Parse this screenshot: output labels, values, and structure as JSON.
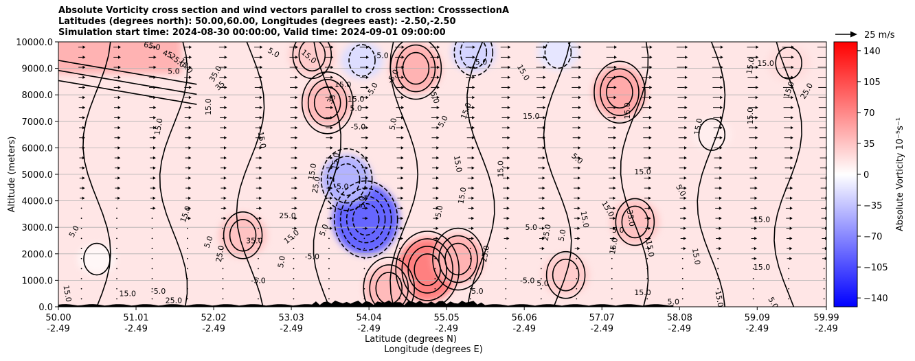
{
  "chart_data": {
    "type": "heatmap",
    "title_lines": [
      "Absolute Vorticity cross section and wind vectors parallel to cross section: CrosssectionA",
      "Latitudes (degrees north): 50.00,60.00, Longitudes (degrees east): -2.50,-2.50",
      "Simulation start time: 2024-08-30 00:00:00, Valid time: 2024-09-01 09:00:00"
    ],
    "xlabel_line1": "Latitude (degrees N)",
    "xlabel_line2": "Longitude (degrees E)",
    "ylabel": "Altitude (meters)",
    "xlim": [
      50.0,
      59.99
    ],
    "ylim": [
      0,
      10000
    ],
    "x_ticks": [
      {
        "lat": "50.00",
        "lon": "-2.49",
        "value": 50.0
      },
      {
        "lat": "51.01",
        "lon": "-2.49",
        "value": 51.01
      },
      {
        "lat": "52.02",
        "lon": "-2.49",
        "value": 52.02
      },
      {
        "lat": "53.03",
        "lon": "-2.49",
        "value": 53.03
      },
      {
        "lat": "54.04",
        "lon": "-2.49",
        "value": 54.04
      },
      {
        "lat": "55.05",
        "lon": "-2.49",
        "value": 55.05
      },
      {
        "lat": "56.06",
        "lon": "-2.49",
        "value": 56.06
      },
      {
        "lat": "57.07",
        "lon": "-2.49",
        "value": 57.07
      },
      {
        "lat": "58.08",
        "lon": "-2.49",
        "value": 58.08
      },
      {
        "lat": "59.09",
        "lon": "-2.49",
        "value": 59.09
      },
      {
        "lat": "59.99",
        "lon": "-2.49",
        "value": 59.99
      }
    ],
    "y_ticks": [
      {
        "label": "0.0",
        "value": 0
      },
      {
        "label": "1000.0",
        "value": 1000
      },
      {
        "label": "2000.0",
        "value": 2000
      },
      {
        "label": "3000.0",
        "value": 3000
      },
      {
        "label": "4000.0",
        "value": 4000
      },
      {
        "label": "5000.0",
        "value": 5000
      },
      {
        "label": "6000.0",
        "value": 6000
      },
      {
        "label": "7000.0",
        "value": 7000
      },
      {
        "label": "8000.0",
        "value": 8000
      },
      {
        "label": "9000.0",
        "value": 9000
      },
      {
        "label": "10000.0",
        "value": 10000
      }
    ],
    "grid": "horizontal",
    "colorbar": {
      "label": "Absolute Vorticity 10⁻⁵s⁻¹",
      "range": [
        -150,
        150
      ],
      "ticks": [
        {
          "label": "140",
          "value": 140
        },
        {
          "label": "105",
          "value": 105
        },
        {
          "label": "70",
          "value": 70
        },
        {
          "label": "35",
          "value": 35
        },
        {
          "label": "0",
          "value": 0
        },
        {
          "label": "−35",
          "value": -35
        },
        {
          "label": "−70",
          "value": -70
        },
        {
          "label": "−105",
          "value": -105
        },
        {
          "label": "−140",
          "value": -140
        }
      ],
      "colors": {
        "low": "#0000ff",
        "mid": "#ffffff",
        "high": "#ff0000"
      }
    },
    "quiver_key": {
      "label": "25 m/s",
      "speed": 25
    },
    "contour_levels": [
      -35,
      -25,
      -15,
      -5,
      5,
      15,
      25,
      35,
      45,
      65
    ],
    "field_features": [
      {
        "kind": "background",
        "lat": [
          50.0,
          59.99
        ],
        "alt": [
          0,
          10000
        ],
        "value": 15
      },
      {
        "kind": "band",
        "lat": [
          50.0,
          51.6
        ],
        "alt": [
          8800,
          10000
        ],
        "value": 45
      },
      {
        "kind": "blob",
        "lat": 53.5,
        "alt": 7700,
        "value": 40
      },
      {
        "kind": "blob",
        "lat": 52.4,
        "alt": 2700,
        "value": 35
      },
      {
        "kind": "blob",
        "lat": 54.0,
        "alt": 3300,
        "value": -90
      },
      {
        "kind": "blob",
        "lat": 53.75,
        "alt": 4800,
        "value": -45
      },
      {
        "kind": "blob",
        "lat": 53.3,
        "alt": 9500,
        "value": 30
      },
      {
        "kind": "blob",
        "lat": 53.95,
        "alt": 9300,
        "value": -20
      },
      {
        "kind": "blob",
        "lat": 54.65,
        "alt": 9000,
        "value": 45
      },
      {
        "kind": "blob",
        "lat": 55.4,
        "alt": 9600,
        "value": -25
      },
      {
        "kind": "blob",
        "lat": 56.5,
        "alt": 9600,
        "value": -15
      },
      {
        "kind": "blob",
        "lat": 54.8,
        "alt": 1400,
        "value": 75
      },
      {
        "kind": "blob",
        "lat": 55.2,
        "alt": 1800,
        "value": 45
      },
      {
        "kind": "blob",
        "lat": 54.3,
        "alt": 700,
        "value": 40
      },
      {
        "kind": "blob",
        "lat": 57.3,
        "alt": 8100,
        "value": 50
      },
      {
        "kind": "blob",
        "lat": 56.6,
        "alt": 1200,
        "value": 30
      },
      {
        "kind": "blob",
        "lat": 57.5,
        "alt": 3200,
        "value": 35
      },
      {
        "kind": "blob",
        "lat": 59.5,
        "alt": 9200,
        "value": 20
      },
      {
        "kind": "blob",
        "lat": 50.5,
        "alt": 1800,
        "value": 5
      },
      {
        "kind": "blob",
        "lat": 58.5,
        "alt": 6500,
        "value": 10
      }
    ],
    "contour_labels": [
      {
        "text": "65.0",
        "lat": 51.22,
        "alt": 9850,
        "angle": -12
      },
      {
        "text": "45",
        "lat": 51.42,
        "alt": 9550,
        "angle": -20
      },
      {
        "text": "25.0",
        "lat": 51.55,
        "alt": 9300,
        "angle": -40
      },
      {
        "text": "15.0",
        "lat": 51.66,
        "alt": 9100,
        "angle": -50
      },
      {
        "text": "5.0",
        "lat": 51.5,
        "alt": 8900,
        "angle": 0
      },
      {
        "text": "35.0",
        "lat": 52.04,
        "alt": 8800,
        "angle": 60
      },
      {
        "text": "35",
        "lat": 52.1,
        "alt": 8350,
        "angle": 40
      },
      {
        "text": "15.0",
        "lat": 53.26,
        "alt": 9450,
        "angle": -40
      },
      {
        "text": "5.0",
        "lat": 52.8,
        "alt": 9600,
        "angle": -30
      },
      {
        "text": "15.0",
        "lat": 53.7,
        "alt": 8400,
        "angle": 0
      },
      {
        "text": "-5.0",
        "lat": 54.2,
        "alt": 9500,
        "angle": 0
      },
      {
        "text": "15.0",
        "lat": 53.87,
        "alt": 7850,
        "angle": 0
      },
      {
        "text": "5.0",
        "lat": 53.87,
        "alt": 7500,
        "angle": 0
      },
      {
        "text": "35",
        "lat": 53.55,
        "alt": 7850,
        "angle": 60
      },
      {
        "text": "-5.0",
        "lat": 54.08,
        "alt": 8200,
        "angle": 60
      },
      {
        "text": "-5.0",
        "lat": 54.35,
        "alt": 8700,
        "angle": 60
      },
      {
        "text": "-5.0",
        "lat": 53.9,
        "alt": 6800,
        "angle": 0
      },
      {
        "text": "15.0",
        "lat": 51.95,
        "alt": 7550,
        "angle": 90
      },
      {
        "text": "15.0",
        "lat": 51.3,
        "alt": 6800,
        "angle": 80
      },
      {
        "text": "15.0",
        "lat": 52.65,
        "alt": 6300,
        "angle": -80
      },
      {
        "text": "5.0",
        "lat": 54.9,
        "alt": 7900,
        "angle": -70
      },
      {
        "text": "5.0",
        "lat": 55.0,
        "alt": 7000,
        "angle": 60
      },
      {
        "text": "15.0",
        "lat": 55.3,
        "alt": 7400,
        "angle": 70
      },
      {
        "text": "5.0",
        "lat": 55.5,
        "alt": 9250,
        "angle": 0
      },
      {
        "text": "15.0",
        "lat": 56.05,
        "alt": 8850,
        "angle": -60
      },
      {
        "text": "15.0",
        "lat": 56.15,
        "alt": 7200,
        "angle": 0
      },
      {
        "text": "15.0",
        "lat": 57.4,
        "alt": 7400,
        "angle": 90
      },
      {
        "text": "15.0",
        "lat": 58.32,
        "alt": 6800,
        "angle": 80
      },
      {
        "text": "15.0",
        "lat": 59.2,
        "alt": 9200,
        "angle": 0
      },
      {
        "text": "15.0",
        "lat": 59.0,
        "alt": 9100,
        "angle": 80
      },
      {
        "text": "15.0",
        "lat": 59.5,
        "alt": 8200,
        "angle": 70
      },
      {
        "text": "25.0",
        "lat": 59.73,
        "alt": 8150,
        "angle": 60
      },
      {
        "text": "15.0",
        "lat": 59.0,
        "alt": 7200,
        "angle": 90
      },
      {
        "text": "15.0",
        "lat": 57.6,
        "alt": 5100,
        "angle": 0
      },
      {
        "text": "5.0",
        "lat": 56.75,
        "alt": 5600,
        "angle": -40
      },
      {
        "text": "5.0",
        "lat": 58.1,
        "alt": 4400,
        "angle": -60
      },
      {
        "text": "15.0",
        "lat": 55.75,
        "alt": 5200,
        "angle": 90
      },
      {
        "text": "15.0",
        "lat": 55.2,
        "alt": 5400,
        "angle": -80
      },
      {
        "text": "5.0",
        "lat": 54.35,
        "alt": 6900,
        "angle": 80
      },
      {
        "text": "15.0",
        "lat": 53.3,
        "alt": 5100,
        "angle": 80
      },
      {
        "text": "15.0",
        "lat": 53.6,
        "alt": 5500,
        "angle": 80
      },
      {
        "text": "25.0",
        "lat": 53.35,
        "alt": 4600,
        "angle": 80
      },
      {
        "text": "-5.0",
        "lat": 53.68,
        "alt": 4550,
        "angle": 0
      },
      {
        "text": "5.0",
        "lat": 53.95,
        "alt": 3950,
        "angle": 90
      },
      {
        "text": "15.0",
        "lat": 51.65,
        "alt": 3500,
        "angle": 70
      },
      {
        "text": "25.0",
        "lat": 52.98,
        "alt": 3450,
        "angle": 0
      },
      {
        "text": "35.0",
        "lat": 52.55,
        "alt": 2500,
        "angle": 0
      },
      {
        "text": "15.0",
        "lat": 53.03,
        "alt": 2650,
        "angle": 40
      },
      {
        "text": "5.0",
        "lat": 51.95,
        "alt": 2450,
        "angle": 70
      },
      {
        "text": "5.0",
        "lat": 50.2,
        "alt": 2850,
        "angle": 60
      },
      {
        "text": "25.0",
        "lat": 52.1,
        "alt": 2000,
        "angle": 80
      },
      {
        "text": "5.0",
        "lat": 52.9,
        "alt": 1700,
        "angle": 80
      },
      {
        "text": "-5.0",
        "lat": 53.3,
        "alt": 1900,
        "angle": 0
      },
      {
        "text": "5.0",
        "lat": 53.45,
        "alt": 2900,
        "angle": 70
      },
      {
        "text": "5.0",
        "lat": 54.95,
        "alt": 3600,
        "angle": 80
      },
      {
        "text": "15.0",
        "lat": 55.25,
        "alt": 4200,
        "angle": 80
      },
      {
        "text": "5.0",
        "lat": 56.15,
        "alt": 3000,
        "angle": 0
      },
      {
        "text": "25.0",
        "lat": 56.35,
        "alt": 2800,
        "angle": 80
      },
      {
        "text": "5.0",
        "lat": 56.55,
        "alt": 2700,
        "angle": 80
      },
      {
        "text": "15.0",
        "lat": 56.85,
        "alt": 3300,
        "angle": -80
      },
      {
        "text": "15.0",
        "lat": 57.15,
        "alt": 3700,
        "angle": -60
      },
      {
        "text": "35.0",
        "lat": 57.45,
        "alt": 3350,
        "angle": -80
      },
      {
        "text": "5.0",
        "lat": 57.28,
        "alt": 2900,
        "angle": 0
      },
      {
        "text": "15.0",
        "lat": 57.22,
        "alt": 2300,
        "angle": 80
      },
      {
        "text": "15.0",
        "lat": 57.7,
        "alt": 2200,
        "angle": -80
      },
      {
        "text": "15.0",
        "lat": 58.3,
        "alt": 1900,
        "angle": -80
      },
      {
        "text": "25.0",
        "lat": 55.55,
        "alt": 2000,
        "angle": 80
      },
      {
        "text": "15.0",
        "lat": 59.15,
        "alt": 3300,
        "angle": 0
      },
      {
        "text": "15.0",
        "lat": 59.15,
        "alt": 1500,
        "angle": 0
      },
      {
        "text": "5.0",
        "lat": 55.45,
        "alt": 600,
        "angle": 0
      },
      {
        "text": "-5.0",
        "lat": 56.1,
        "alt": 1000,
        "angle": 0
      },
      {
        "text": "5.0",
        "lat": 56.3,
        "alt": 900,
        "angle": 0
      },
      {
        "text": "15.0",
        "lat": 57.6,
        "alt": 550,
        "angle": 0
      },
      {
        "text": "5.0",
        "lat": 58.0,
        "alt": 200,
        "angle": 0
      },
      {
        "text": "15.0",
        "lat": 58.6,
        "alt": 300,
        "angle": -80
      },
      {
        "text": "5.0",
        "lat": 59.3,
        "alt": 150,
        "angle": -60
      },
      {
        "text": "-5.0",
        "lat": 52.6,
        "alt": 1000,
        "angle": 0
      },
      {
        "text": "15.0",
        "lat": 50.9,
        "alt": 500,
        "angle": 0
      },
      {
        "text": "15.0",
        "lat": 50.12,
        "alt": 500,
        "angle": -80
      },
      {
        "text": "-5.0",
        "lat": 51.3,
        "alt": 600,
        "angle": 0
      },
      {
        "text": "25.0",
        "lat": 51.5,
        "alt": 250,
        "angle": 0
      }
    ]
  }
}
